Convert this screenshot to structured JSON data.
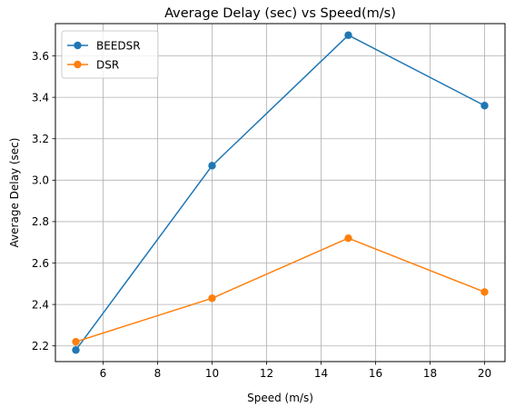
{
  "chart_data": {
    "type": "line",
    "title": "Average Delay (sec) vs Speed(m/s)",
    "xlabel": "Speed (m/s)",
    "ylabel": "Average Delay (sec)",
    "xlim": [
      4.25,
      20.75
    ],
    "ylim": [
      2.1242,
      3.7558
    ],
    "xticks": [
      6,
      8,
      10,
      12,
      14,
      16,
      18,
      20
    ],
    "yticks": [
      2.2,
      2.4,
      2.6,
      2.8,
      3.0,
      3.2,
      3.4,
      3.6
    ],
    "xtick_labels": [
      "6",
      "8",
      "10",
      "12",
      "14",
      "16",
      "18",
      "20"
    ],
    "ytick_labels": [
      "2.2",
      "2.4",
      "2.6",
      "2.8",
      "3.0",
      "3.2",
      "3.4",
      "3.6"
    ],
    "grid": true,
    "legend_position": "top-left",
    "x": [
      5,
      10,
      15,
      20
    ],
    "series": [
      {
        "name": "BEEDSR",
        "color": "#1f77b4",
        "values": [
          2.18,
          3.07,
          3.7,
          3.36
        ]
      },
      {
        "name": "DSR",
        "color": "#ff7f0e",
        "values": [
          2.22,
          2.43,
          2.72,
          2.46
        ]
      }
    ]
  }
}
